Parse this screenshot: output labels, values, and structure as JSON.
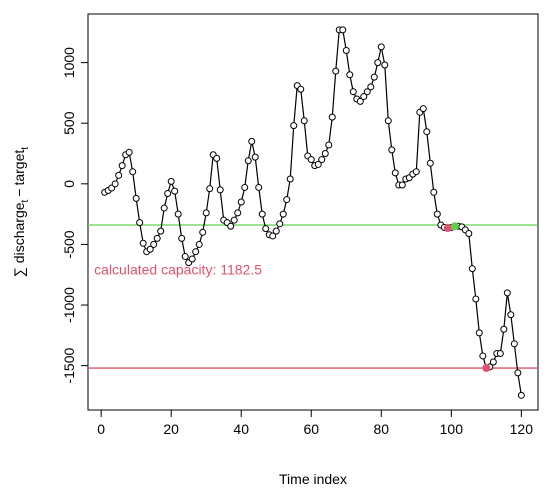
{
  "chart_data": {
    "type": "line",
    "xlabel": "Time index",
    "ylabel": {
      "sum": "∑",
      "a": "discharge",
      "a_sub": "t",
      "op": "−",
      "b": "target",
      "b_sub": "t"
    },
    "x": [
      1,
      2,
      3,
      4,
      5,
      6,
      7,
      8,
      9,
      10,
      11,
      12,
      13,
      14,
      15,
      16,
      17,
      18,
      19,
      20,
      21,
      22,
      23,
      24,
      25,
      26,
      27,
      28,
      29,
      30,
      31,
      32,
      33,
      34,
      35,
      36,
      37,
      38,
      39,
      40,
      41,
      42,
      43,
      44,
      45,
      46,
      47,
      48,
      49,
      50,
      51,
      52,
      53,
      54,
      55,
      56,
      57,
      58,
      59,
      60,
      61,
      62,
      63,
      64,
      65,
      66,
      67,
      68,
      69,
      70,
      71,
      72,
      73,
      74,
      75,
      76,
      77,
      78,
      79,
      80,
      81,
      82,
      83,
      84,
      85,
      86,
      87,
      88,
      89,
      90,
      91,
      92,
      93,
      94,
      95,
      96,
      97,
      98,
      99,
      100,
      101,
      102,
      103,
      104,
      105,
      106,
      107,
      108,
      109,
      110,
      111,
      112,
      113,
      114,
      115,
      116,
      117,
      118,
      119,
      120
    ],
    "values": [
      -70,
      -55,
      -35,
      0,
      70,
      150,
      240,
      260,
      100,
      -120,
      -320,
      -490,
      -560,
      -540,
      -500,
      -450,
      -390,
      -200,
      -80,
      20,
      -60,
      -250,
      -450,
      -600,
      -650,
      -620,
      -560,
      -500,
      -400,
      -240,
      -40,
      240,
      210,
      -50,
      -300,
      -320,
      -350,
      -300,
      -240,
      -150,
      -30,
      190,
      350,
      220,
      -30,
      -250,
      -370,
      -420,
      -430,
      -390,
      -330,
      -250,
      -130,
      40,
      480,
      810,
      780,
      520,
      230,
      200,
      150,
      160,
      200,
      250,
      320,
      550,
      930,
      1270,
      1270,
      1100,
      900,
      760,
      700,
      680,
      720,
      760,
      800,
      880,
      1000,
      1130,
      980,
      520,
      280,
      90,
      -10,
      -10,
      40,
      50,
      80,
      100,
      590,
      620,
      430,
      170,
      -70,
      -250,
      -340,
      -360,
      -365,
      -360,
      -350,
      -350,
      -355,
      -380,
      -410,
      -700,
      -950,
      -1230,
      -1420,
      -1520,
      -1510,
      -1470,
      -1400,
      -1400,
      -1200,
      -900,
      -1080,
      -1320,
      -1560,
      -1745
    ],
    "color": "#000000",
    "xlim": [
      -3.76,
      124.76
    ],
    "ylim": [
      -1866,
      1401
    ],
    "xticks": [
      0,
      20,
      40,
      60,
      80,
      100,
      120
    ],
    "yticks": [
      -1500,
      -1000,
      -500,
      0,
      500,
      1000
    ],
    "hlines": [
      {
        "y": -340,
        "color": "#61D04F"
      },
      {
        "y": -1520,
        "color": "#DF536B"
      }
    ],
    "highlights": [
      {
        "x": 99,
        "y": -365,
        "color": "#DF536B"
      },
      {
        "x": 101,
        "y": -350,
        "color": "#61D04F"
      },
      {
        "x": 110,
        "y": -1520,
        "color": "#DF536B"
      }
    ],
    "annotation": {
      "text": "calculated capacity: 1182.5",
      "x": -2,
      "y": -750,
      "color": "#DF536B"
    }
  }
}
